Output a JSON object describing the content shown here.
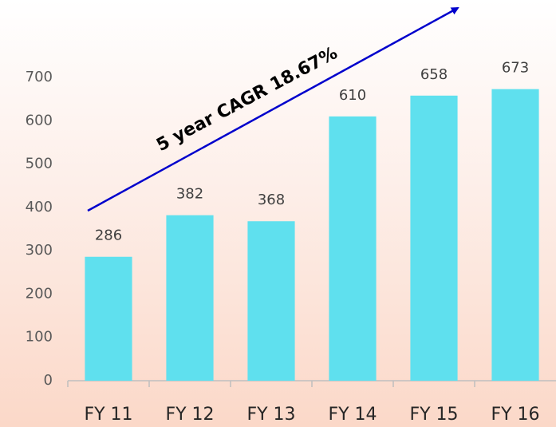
{
  "chart_data": {
    "type": "bar",
    "annotation": "5 year CAGR 18.67%",
    "categories": [
      "FY 11",
      "FY 12",
      "FY 13",
      "FY 14",
      "FY 15",
      "FY 16"
    ],
    "values": [
      286,
      382,
      368,
      610,
      658,
      673
    ],
    "color": "#5fe0ee",
    "ylim": [
      0,
      700
    ],
    "yticks": [
      0,
      100,
      200,
      300,
      400,
      500,
      600,
      700
    ],
    "grid": false
  }
}
